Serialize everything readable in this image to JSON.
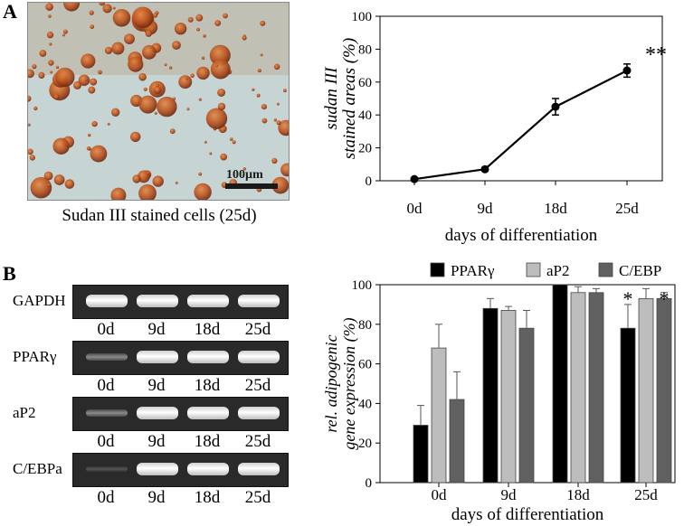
{
  "panel_a_label": "A",
  "panel_b_label": "B",
  "photo": {
    "caption": "Sudan III stained cells (25d)",
    "scalebar": "100µm"
  },
  "gel": {
    "genes": [
      "GAPDH",
      "PPARγ",
      "aP2",
      "C/EBPa"
    ],
    "lanes": [
      "0d",
      "9d",
      "18d",
      "25d"
    ]
  },
  "chart_data": [
    {
      "type": "line",
      "categories": [
        "0d",
        "9d",
        "18d",
        "25d"
      ],
      "values": [
        1,
        7,
        45,
        67
      ],
      "errors": [
        0.5,
        1,
        5,
        4
      ],
      "ylabel_line1": "sudan III",
      "ylabel_line2": "stained areas (%)",
      "xlabel": "days of differentiation",
      "ylim": [
        0,
        100
      ],
      "yticks": [
        "0",
        "20",
        "40",
        "60",
        "80",
        "100"
      ],
      "annotation": "**"
    },
    {
      "type": "bar",
      "categories": [
        "0d",
        "9d",
        "18d",
        "25d"
      ],
      "series": [
        {
          "name": "PPARγ",
          "color": "#000000",
          "values": [
            29,
            88,
            100,
            78
          ],
          "errors": [
            10,
            5,
            0,
            12
          ]
        },
        {
          "name": "aP2",
          "color": "#bdbdbd",
          "values": [
            68,
            87,
            96,
            93
          ],
          "errors": [
            12,
            2,
            3,
            5
          ]
        },
        {
          "name": "C/EBP",
          "color": "#606060",
          "values": [
            42,
            78,
            96,
            93
          ],
          "errors": [
            14,
            9,
            2,
            3
          ]
        }
      ],
      "ylabel_line1": "rel. adipogenic",
      "ylabel_line2": "gene expression (%)",
      "xlabel": "days of differentiation",
      "ylim": [
        0,
        100
      ],
      "yticks": [
        "0",
        "20",
        "40",
        "60",
        "80",
        "100"
      ],
      "annotation": "*"
    }
  ]
}
